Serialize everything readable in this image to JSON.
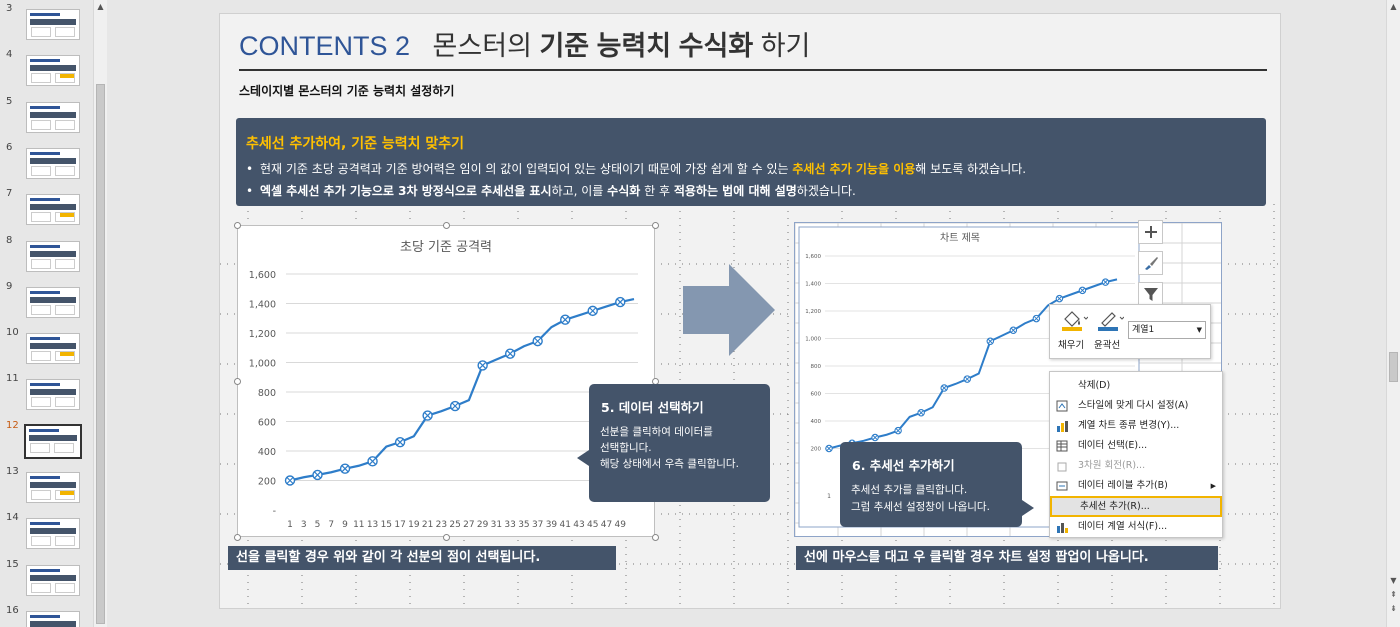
{
  "thumbnails": {
    "numbers": [
      "3",
      "4",
      "5",
      "6",
      "7",
      "8",
      "9",
      "10",
      "11",
      "12",
      "13",
      "14",
      "15",
      "16"
    ],
    "selected": "12"
  },
  "slide": {
    "title_number": "CONTENTS 2",
    "title_part1": "몬스터의",
    "title_bold": "기준 능력치 수식화",
    "title_part2": "하기",
    "subtitle": "스테이지별 몬스터의 기준 능력치 설정하기",
    "info": {
      "heading": "추세선 추가하여, 기준 능력치 맞추기",
      "bullet_dot": "•",
      "bullet1_a": "현재 기준 초당 공격력과 기준 방어력은 임이 의 값이 입력되어 있는 상태이기 때문에 가장 쉽게 할 수 있는",
      "bullet1_hl": "추세선 추가 기능을 이용",
      "bullet1_b": "해 보도록 하겠습니다.",
      "bullet2_a": "엑셀 추세선 추가 기능으로 3차 방정식으로 추세선을 표시",
      "bullet2_b": "하고, 이를",
      "bullet2_c": "수식화",
      "bullet2_d": "한 후",
      "bullet2_e": "적용하는 법에 대해 설명",
      "bullet2_f": "하겠습니다."
    },
    "callout1": {
      "title": "5. 데이터 선택하기",
      "lines": [
        "선분을 클릭하여 데이터를",
        "선택합니다.",
        "해당 상태에서 우측 클릭합니다."
      ]
    },
    "callout2": {
      "title": "6. 추세선 추가하기",
      "lines": [
        "추세선 추가를 클릭합니다.",
        "그럼 추세선 설정창이 나옵니다."
      ]
    },
    "caption_left": "선을 클릭할 경우 위와 같이 각 선분의 점이 선택됩니다.",
    "caption_right": "선에 마우스를 대고 우 클릭할 경우 차트 설정 팝업이 나옵니다."
  },
  "mini_toolbar": {
    "fill_label": "채우기",
    "outline_label": "윤곽선",
    "series_value": "계열1"
  },
  "context_menu": {
    "items": [
      "삭제(D)",
      "스타일에 맞게 다시 설정(A)",
      "계열 차트 종류 변경(Y)...",
      "데이터 선택(E)...",
      "3차원 회전(R)...",
      "데이터 레이블 추가(B)",
      "추세선 추가(R)...",
      "데이터 계열 서식(F)..."
    ],
    "highlighted": "추세선 추가(R)..."
  },
  "colors": {
    "accent_dark": "#44546a",
    "highlight_yellow": "#ffc000",
    "title_blue": "#2f5597",
    "line_blue": "#2e7dc9"
  },
  "chart_data": [
    {
      "type": "line",
      "title": "초당 기준 공격력",
      "xlabel": "",
      "ylabel": "",
      "x": [
        1,
        3,
        5,
        7,
        9,
        11,
        13,
        15,
        17,
        19,
        21,
        23,
        25,
        27,
        29,
        31,
        33,
        35,
        37,
        39,
        41,
        43,
        45,
        47,
        49,
        51
      ],
      "values": [
        200,
        222,
        238,
        256,
        280,
        300,
        330,
        430,
        460,
        500,
        640,
        670,
        705,
        745,
        980,
        1020,
        1060,
        1110,
        1145,
        1240,
        1290,
        1320,
        1350,
        1380,
        1410,
        1430
      ],
      "tick_labels_x": [
        "1",
        "3",
        "5",
        "7",
        "9",
        "11",
        "13",
        "15",
        "17",
        "19",
        "21",
        "23",
        "25",
        "27",
        "29",
        "31",
        "33",
        "35",
        "37",
        "39",
        "41",
        "43",
        "45",
        "47",
        "49"
      ],
      "tick_labels_y": [
        "-",
        "200",
        "400",
        "600",
        "800",
        "1,000",
        "1,200",
        "1,400",
        "1,600"
      ],
      "ylim": [
        0,
        1600
      ],
      "grid": true
    },
    {
      "type": "line",
      "title": "차트 제목",
      "xlabel": "",
      "ylabel": "",
      "tick_labels_y": [
        "200",
        "400",
        "600",
        "800",
        "1,000",
        "1,200",
        "1,400",
        "1,600"
      ],
      "tick_labels_x": [
        "1"
      ],
      "ylim": [
        0,
        1600
      ],
      "grid": true
    }
  ]
}
